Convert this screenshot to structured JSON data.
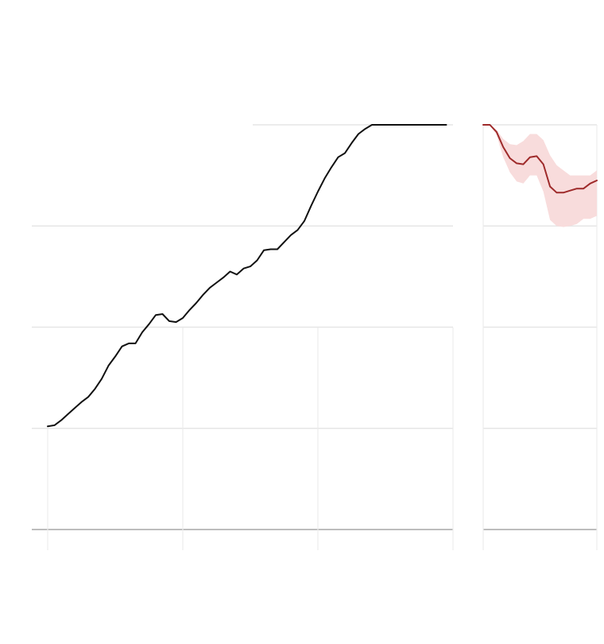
{
  "colors": {
    "historical": "#111111",
    "projection": "#9e2a2a",
    "band": "#f8dcdc",
    "grid": "#e6e6e6",
    "baseline": "#bdbdbd"
  },
  "chart_data": [
    {
      "type": "line",
      "title": "",
      "xlabel": "",
      "ylabel": "",
      "grid": true,
      "legend": "none",
      "xlim": [
        0,
        60
      ],
      "ylim": [
        0,
        4
      ],
      "x_gridlines": [
        0,
        20,
        40,
        60
      ],
      "y_gridlines": [
        0,
        1,
        2,
        3,
        4
      ],
      "series": [
        {
          "x": [
            0,
            1,
            2,
            3,
            4,
            5,
            6,
            7,
            8,
            9,
            10,
            11,
            12,
            13,
            14,
            15,
            16,
            17,
            18,
            19,
            20,
            21,
            22,
            23,
            24,
            25,
            26,
            27,
            28,
            29,
            30,
            31,
            32,
            33,
            34,
            35,
            36,
            37,
            38,
            39,
            40,
            41,
            42,
            43,
            44,
            45,
            46,
            47,
            48,
            49,
            50,
            51,
            52,
            53,
            54,
            55,
            56,
            57,
            58,
            59
          ],
          "values": [
            1.02,
            1.03,
            1.08,
            1.14,
            1.2,
            1.26,
            1.31,
            1.39,
            1.49,
            1.62,
            1.71,
            1.81,
            1.84,
            1.84,
            1.95,
            2.03,
            2.12,
            2.13,
            2.06,
            2.05,
            2.09,
            2.17,
            2.24,
            2.32,
            2.39,
            2.44,
            2.49,
            2.55,
            2.52,
            2.58,
            2.6,
            2.66,
            2.76,
            2.77,
            2.77,
            2.84,
            2.91,
            2.96,
            3.05,
            3.2,
            3.34,
            3.47,
            3.58,
            3.68,
            3.72,
            3.82,
            3.91,
            3.96,
            4.01,
            4.02,
            4.02,
            4.04,
            4.07,
            4.12,
            4.18,
            4.2,
            4.25,
            4.3,
            4.35,
            4.4
          ]
        }
      ]
    },
    {
      "type": "area",
      "title": "",
      "xlabel": "",
      "ylabel": "",
      "grid": true,
      "legend": "none",
      "xlim": [
        0,
        17
      ],
      "ylim": [
        0,
        4
      ],
      "y_gridlines": [
        0,
        1,
        2,
        3,
        4
      ],
      "series": [
        {
          "x": [
            0,
            1,
            2,
            3,
            4,
            5,
            6,
            7,
            8,
            9,
            10,
            11,
            12,
            13,
            14,
            15,
            16,
            17
          ],
          "values": [
            4.0,
            4.0,
            3.93,
            3.78,
            3.67,
            3.62,
            3.61,
            3.68,
            3.69,
            3.61,
            3.39,
            3.33,
            3.33,
            3.35,
            3.37,
            3.37,
            3.42,
            3.45
          ],
          "lower": [
            4.0,
            4.0,
            3.9,
            3.68,
            3.53,
            3.44,
            3.42,
            3.5,
            3.5,
            3.34,
            3.06,
            3.0,
            2.99,
            3.0,
            3.02,
            3.07,
            3.07,
            3.1
          ],
          "upper": [
            4.0,
            4.0,
            3.95,
            3.86,
            3.81,
            3.8,
            3.84,
            3.91,
            3.91,
            3.85,
            3.7,
            3.6,
            3.55,
            3.5,
            3.5,
            3.5,
            3.5,
            3.55
          ]
        }
      ]
    }
  ]
}
